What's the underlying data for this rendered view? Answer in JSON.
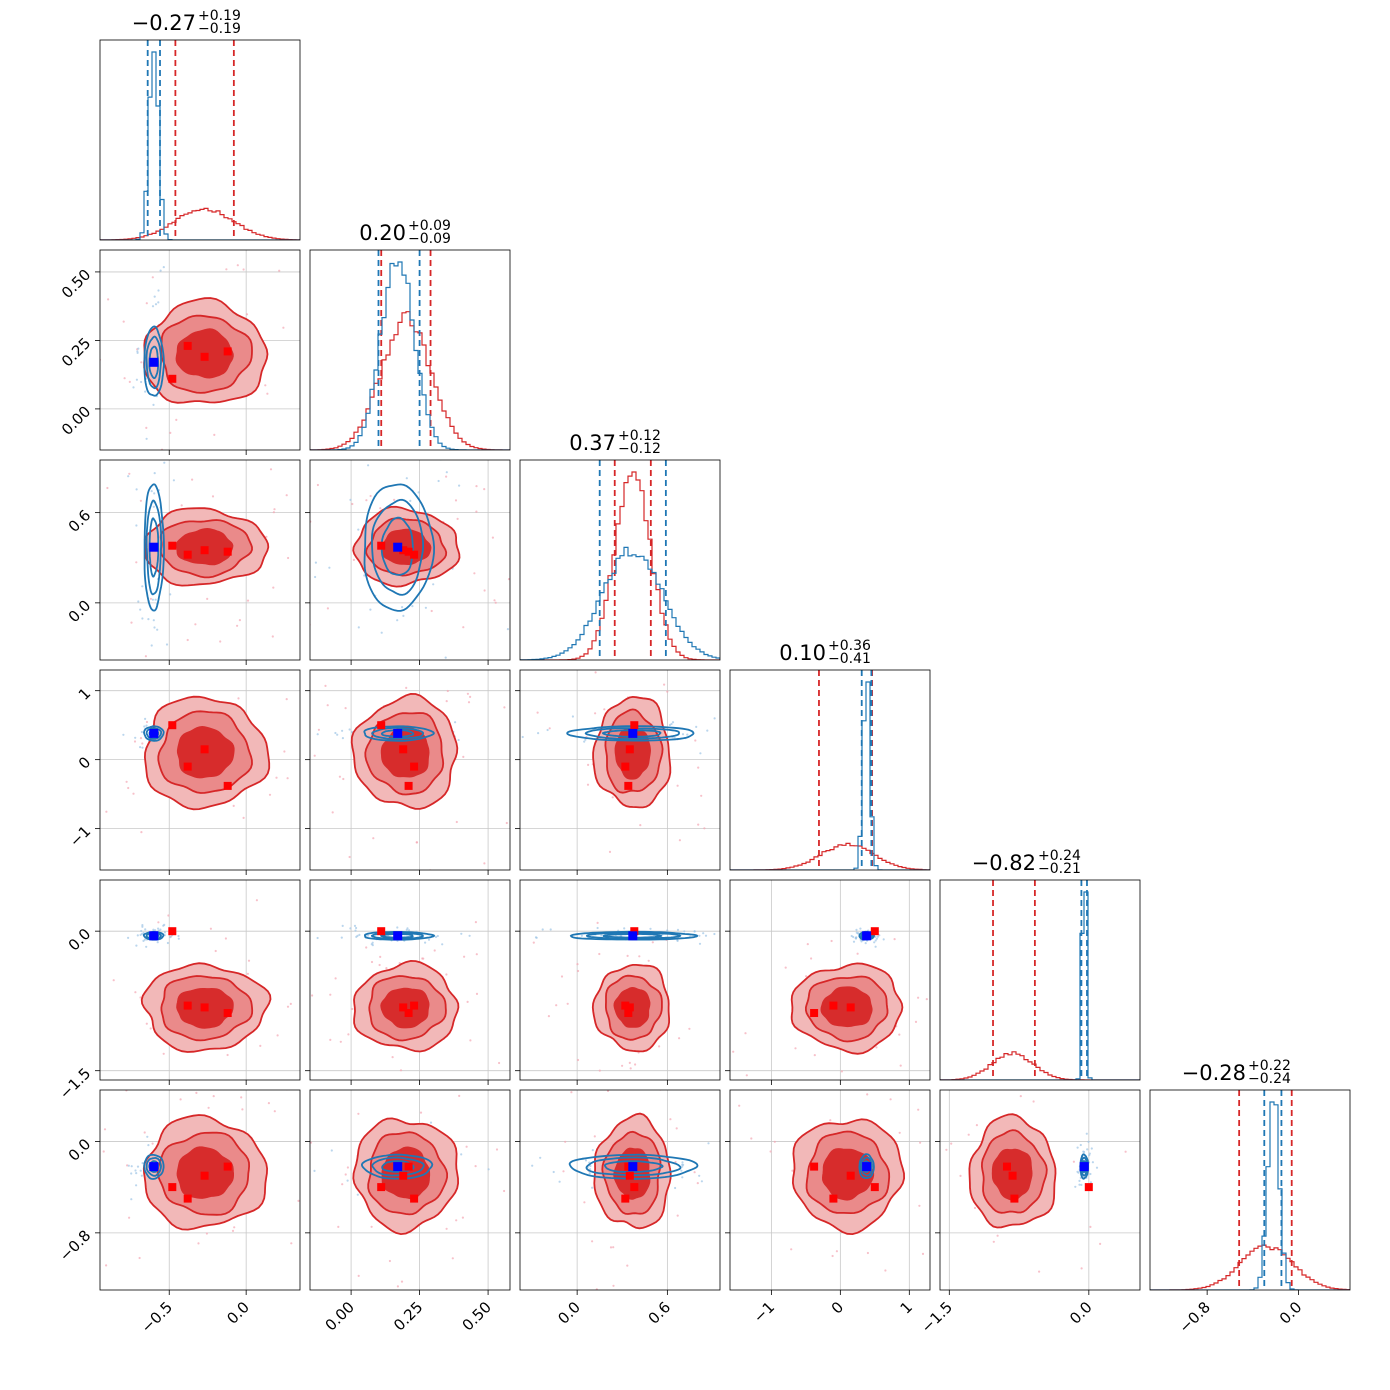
{
  "chart_data": {
    "type": "corner",
    "n_params": 6,
    "colors": {
      "model_a": "#d62728",
      "model_b": "#1f77b4",
      "truth_b": "#0000ff",
      "truth_a": "#ff0000"
    },
    "titles": [
      {
        "median": "−0.27",
        "plus": "+0.19",
        "minus": "−0.19"
      },
      {
        "median": "0.20",
        "plus": "+0.09",
        "minus": "−0.09"
      },
      {
        "median": "0.37",
        "plus": "+0.12",
        "minus": "−0.12"
      },
      {
        "median": "0.10",
        "plus": "+0.36",
        "minus": "−0.41"
      },
      {
        "median": "−0.82",
        "plus": "+0.24",
        "minus": "−0.21"
      },
      {
        "median": "−0.28",
        "plus": "+0.22",
        "minus": "−0.24"
      }
    ],
    "ranges": [
      [
        -0.95,
        0.35
      ],
      [
        -0.15,
        0.58
      ],
      [
        -0.38,
        0.95
      ],
      [
        -1.6,
        1.3
      ],
      [
        -1.6,
        0.55
      ],
      [
        -1.3,
        0.45
      ]
    ],
    "x_ticks": [
      {
        "values": [
          -0.5,
          0.0
        ],
        "labels": [
          "−0.5",
          "0.0"
        ]
      },
      {
        "values": [
          0.0,
          0.25,
          0.5
        ],
        "labels": [
          "0.00",
          "0.25",
          "0.50"
        ]
      },
      {
        "values": [
          0.0,
          0.6
        ],
        "labels": [
          "0.0",
          "0.6"
        ]
      },
      {
        "values": [
          -1,
          0,
          1
        ],
        "labels": [
          "−1",
          "0",
          "1"
        ]
      },
      {
        "values": [
          -1.5,
          0.0
        ],
        "labels": [
          "−1.5",
          "0.0"
        ]
      },
      {
        "values": [
          -0.8,
          0.0
        ],
        "labels": [
          "−0.8",
          "0.0"
        ]
      }
    ],
    "y_ticks": [
      null,
      {
        "values": [
          0.0,
          0.25,
          0.5
        ],
        "labels": [
          "0.00",
          "0.25",
          "0.50"
        ]
      },
      {
        "values": [
          0.0,
          0.6
        ],
        "labels": [
          "0.0",
          "0.6"
        ]
      },
      {
        "values": [
          -1,
          0,
          1
        ],
        "labels": [
          "−1",
          "0",
          "1"
        ]
      },
      {
        "values": [
          -1.5,
          0.0
        ],
        "labels": [
          "−1.5",
          "0.0"
        ]
      },
      {
        "values": [
          -0.8,
          0.0
        ],
        "labels": [
          "−0.8",
          "0.0"
        ]
      }
    ],
    "posteriors": {
      "model_a": {
        "mean": [
          -0.27,
          0.2,
          0.37,
          0.1,
          -0.82,
          -0.28
        ],
        "sd": [
          0.19,
          0.09,
          0.12,
          0.38,
          0.22,
          0.23
        ],
        "quantiles": [
          [
            -0.46,
            -0.08
          ],
          [
            0.11,
            0.29
          ],
          [
            0.25,
            0.49
          ],
          [
            -0.31,
            0.46
          ],
          [
            -1.03,
            -0.58
          ],
          [
            -0.52,
            -0.06
          ]
        ]
      },
      "model_b": {
        "mean": [
          -0.6,
          0.17,
          0.37,
          0.38,
          -0.05,
          -0.22
        ],
        "sd": [
          0.03,
          0.06,
          0.2,
          0.05,
          0.02,
          0.05
        ],
        "quantiles": [
          [
            -0.64,
            -0.56
          ],
          [
            0.1,
            0.25
          ],
          [
            0.15,
            0.59
          ],
          [
            0.31,
            0.45
          ],
          [
            -0.08,
            -0.02
          ],
          [
            -0.3,
            -0.15
          ]
        ]
      }
    },
    "truth_points": {
      "model_b": [
        -0.6,
        0.17,
        0.37,
        0.38,
        -0.05,
        -0.22
      ],
      "model_a": [
        [
          -0.48,
          0.11,
          0.38,
          0.5,
          0.0,
          -0.4
        ],
        [
          -0.38,
          0.23,
          0.32,
          -0.1,
          -0.8,
          -0.5
        ],
        [
          -0.27,
          0.19,
          0.35,
          0.15,
          -0.82,
          -0.3
        ],
        [
          -0.12,
          0.21,
          0.34,
          -0.38,
          -0.88,
          -0.22
        ]
      ]
    }
  }
}
